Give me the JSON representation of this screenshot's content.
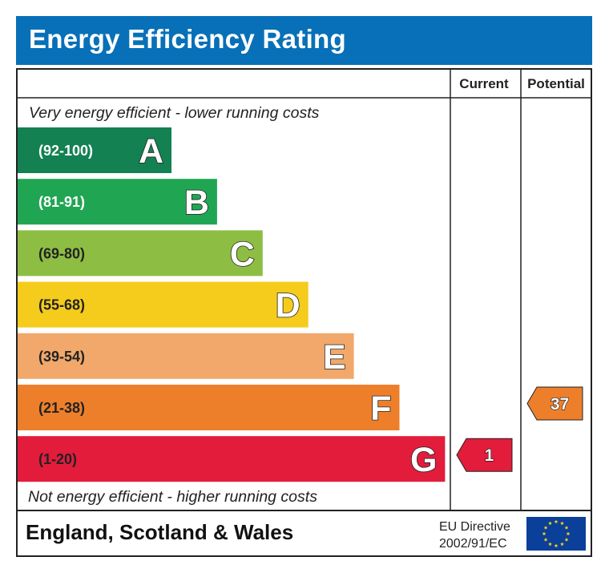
{
  "title": "Energy Efficiency Rating",
  "chart_data": {
    "type": "bar",
    "columns": [
      "Current",
      "Potential"
    ],
    "top_note": "Very energy efficient - lower running costs",
    "bottom_note": "Not energy efficient - higher running costs",
    "bands": [
      {
        "letter": "A",
        "range": "(92-100)",
        "min": 92,
        "max": 100,
        "color": "#138151",
        "text_color": "#ffffff"
      },
      {
        "letter": "B",
        "range": "(81-91)",
        "min": 81,
        "max": 91,
        "color": "#20a653",
        "text_color": "#ffffff"
      },
      {
        "letter": "C",
        "range": "(69-80)",
        "min": 69,
        "max": 80,
        "color": "#8dbe43",
        "text_color": "#222222"
      },
      {
        "letter": "D",
        "range": "(55-68)",
        "min": 55,
        "max": 68,
        "color": "#f5cc1b",
        "text_color": "#222222"
      },
      {
        "letter": "E",
        "range": "(39-54)",
        "min": 39,
        "max": 54,
        "color": "#f1a86a",
        "text_color": "#222222"
      },
      {
        "letter": "F",
        "range": "(21-38)",
        "min": 21,
        "max": 38,
        "color": "#ee7f2a",
        "text_color": "#222222"
      },
      {
        "letter": "G",
        "range": "(1-20)",
        "min": 1,
        "max": 20,
        "color": "#e31c3c",
        "text_color": "#222222"
      }
    ],
    "current": {
      "value": 1,
      "band": "G",
      "color": "#e31c3c"
    },
    "potential": {
      "value": 37,
      "band": "F",
      "color": "#ee7f2a"
    }
  },
  "footer": {
    "region": "England, Scotland & Wales",
    "directive_line1": "EU Directive",
    "directive_line2": "2002/91/EC",
    "flag_icon": "eu-flag-icon"
  }
}
